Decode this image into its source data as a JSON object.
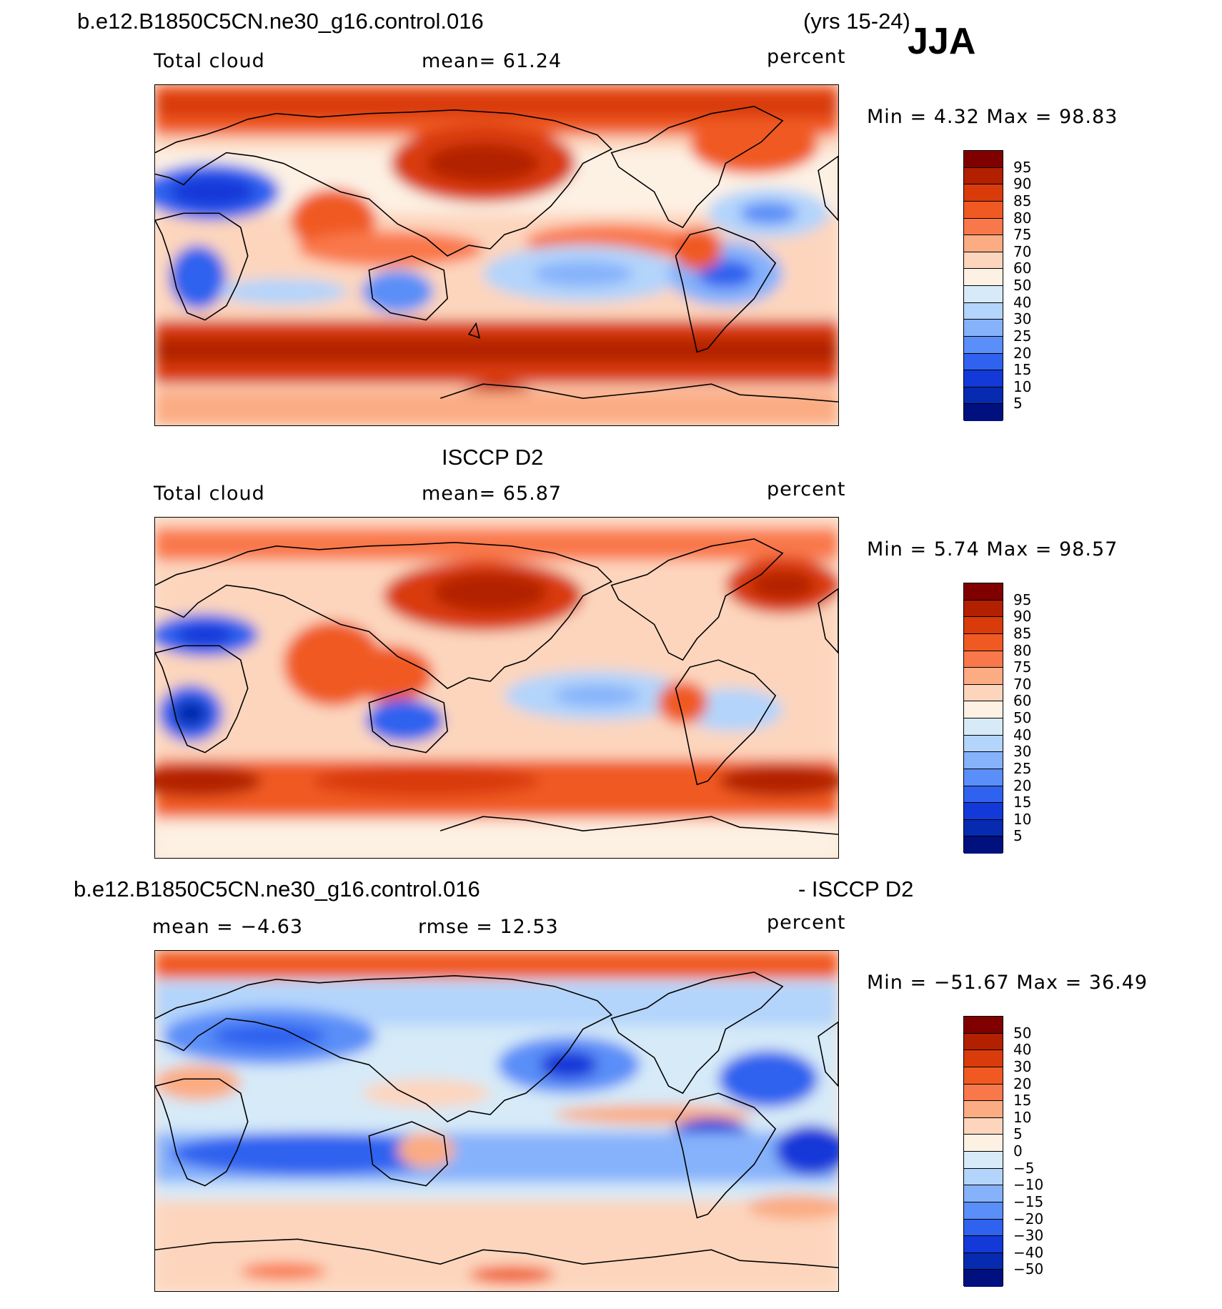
{
  "header": {
    "case_name": "b.e12.B1850C5CN.ne30_g16.control.016",
    "years": "(yrs 15-24)",
    "season": "JJA"
  },
  "panels": [
    {
      "title": "",
      "left_label": "Total cloud",
      "center_label": "mean=   61.24",
      "units": "percent",
      "minmax": "Min =     4.32 Max =    98.83",
      "colorbar": {
        "ticks": [
          "95",
          "90",
          "85",
          "80",
          "75",
          "70",
          "60",
          "50",
          "40",
          "30",
          "25",
          "20",
          "15",
          "10",
          "5"
        ],
        "colors": [
          "#800000",
          "#b22000",
          "#d93b0b",
          "#f05a22",
          "#f9784b",
          "#fbac83",
          "#fdd5bd",
          "#fdf1e4",
          "#d6eaf8",
          "#b3d4fb",
          "#86b2fb",
          "#5a8ef8",
          "#2f62ef",
          "#1439d9",
          "#062bb0",
          "#00107f"
        ]
      }
    },
    {
      "title": "ISCCP D2",
      "left_label": "Total cloud",
      "center_label": "mean=   65.87",
      "units": "percent",
      "minmax": "Min =     5.74 Max =    98.57",
      "colorbar": {
        "ticks": [
          "95",
          "90",
          "85",
          "80",
          "75",
          "70",
          "60",
          "50",
          "40",
          "30",
          "25",
          "20",
          "15",
          "10",
          "5"
        ],
        "colors": [
          "#800000",
          "#b22000",
          "#d93b0b",
          "#f05a22",
          "#f9784b",
          "#fbac83",
          "#fdd5bd",
          "#fdf1e4",
          "#d6eaf8",
          "#b3d4fb",
          "#86b2fb",
          "#5a8ef8",
          "#2f62ef",
          "#1439d9",
          "#062bb0",
          "#00107f"
        ]
      }
    },
    {
      "title_left": "b.e12.B1850C5CN.ne30_g16.control.016",
      "title_right": "- ISCCP D2",
      "left_label": "mean =   −4.63",
      "center_label": "rmse =    12.53",
      "units": "percent",
      "minmax": "Min = −51.67  Max =    36.49",
      "colorbar": {
        "ticks": [
          "50",
          "40",
          "30",
          "20",
          "15",
          "10",
          "5",
          "0",
          "−5",
          "−10",
          "−15",
          "−20",
          "−30",
          "−40",
          "−50"
        ],
        "colors": [
          "#800000",
          "#b22000",
          "#d93b0b",
          "#f05a22",
          "#f9784b",
          "#fbac83",
          "#fdd5bd",
          "#fdf1e4",
          "#d6eaf8",
          "#b3d4fb",
          "#86b2fb",
          "#5a8ef8",
          "#2f62ef",
          "#1439d9",
          "#062bb0",
          "#00107f"
        ]
      }
    }
  ]
}
